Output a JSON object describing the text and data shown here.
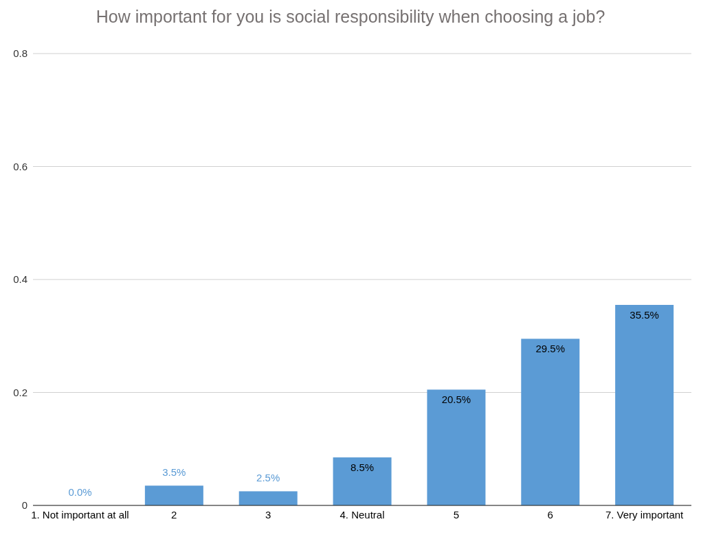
{
  "chart_data": {
    "type": "bar",
    "title": "How important for you is social responsibility when choosing a job?",
    "categories": [
      "1. Not important at all",
      "2",
      "3",
      "4. Neutral",
      "5",
      "6",
      "7. Very important"
    ],
    "values": [
      0,
      0.035,
      0.025,
      0.085,
      0.205,
      0.295,
      0.355
    ],
    "value_labels": [
      "0.0%",
      "3.5%",
      "2.5%",
      "8.5%",
      "20.5%",
      "29.5%",
      "35.5%"
    ],
    "color": "#5b9bd5",
    "ylim": [
      0,
      0.8
    ],
    "yticks": [
      0,
      0.2,
      0.4,
      0.6,
      0.8
    ],
    "grid": "y"
  }
}
